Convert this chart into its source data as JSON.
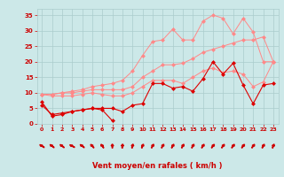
{
  "x": [
    0,
    1,
    2,
    3,
    4,
    5,
    6,
    7,
    8,
    9,
    10,
    11,
    12,
    13,
    14,
    15,
    16,
    17,
    18,
    19,
    20,
    21,
    22,
    23
  ],
  "line1": [
    7,
    2.5,
    3,
    4,
    4.5,
    5,
    4.5,
    1,
    null,
    null,
    null,
    null,
    null,
    null,
    null,
    null,
    null,
    null,
    null,
    null,
    null,
    null,
    null,
    null
  ],
  "line2": [
    6,
    3,
    3.5,
    4,
    4.5,
    5,
    5,
    5,
    4,
    6,
    6.5,
    13,
    13,
    11.5,
    12,
    10.5,
    14.5,
    20,
    16,
    19.5,
    12.5,
    6.5,
    12.5,
    13
  ],
  "line3": [
    9.5,
    9,
    9,
    9,
    9.5,
    10,
    9.5,
    9,
    9,
    10,
    12,
    14,
    14,
    14,
    13,
    15,
    17,
    18,
    16.5,
    17,
    16,
    12,
    13.5,
    20
  ],
  "line4": [
    9.5,
    9.5,
    10,
    10,
    10.5,
    11,
    11,
    11,
    11,
    12,
    15,
    17,
    19,
    19,
    19.5,
    21,
    23,
    24,
    25,
    26,
    27,
    27,
    28,
    20
  ],
  "line5": [
    9.5,
    9.5,
    10,
    10.5,
    11,
    12,
    12.5,
    13,
    14,
    17,
    22,
    26.5,
    27,
    30.5,
    27,
    27,
    33,
    35,
    34,
    29,
    34,
    29.5,
    20,
    20
  ],
  "bg_color": "#cce8e8",
  "grid_color": "#aacccc",
  "line1_color": "#dd0000",
  "line2_color": "#dd0000",
  "line3_color": "#ff8888",
  "line4_color": "#ff8888",
  "line5_color": "#ff8888",
  "arrow_color": "#cc0000",
  "xlabel": "Vent moyen/en rafales ( km/h )",
  "ylabel": "",
  "xlim": [
    -0.5,
    23.5
  ],
  "ylim": [
    0,
    37
  ],
  "yticks": [
    0,
    5,
    10,
    15,
    20,
    25,
    30,
    35
  ],
  "xticks": [
    0,
    1,
    2,
    3,
    4,
    5,
    6,
    7,
    8,
    9,
    10,
    11,
    12,
    13,
    14,
    15,
    16,
    17,
    18,
    19,
    20,
    21,
    22,
    23
  ],
  "arrow_angles_deg": [
    135,
    130,
    130,
    140,
    130,
    120,
    115,
    90,
    85,
    80,
    75,
    70,
    70,
    70,
    70,
    70,
    68,
    65,
    65,
    65,
    65,
    65,
    70,
    75
  ],
  "marker_size": 2.5
}
